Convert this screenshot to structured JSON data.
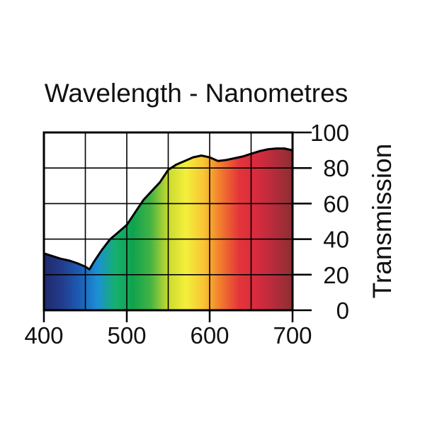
{
  "chart_data": {
    "type": "area",
    "title": "Wavelength - Nanometres",
    "xlabel": "",
    "ylabel": "Transmission",
    "xlim": [
      400,
      700
    ],
    "ylim": [
      0,
      100
    ],
    "x_ticks": [
      "400",
      "500",
      "600",
      "700"
    ],
    "y_ticks": [
      "0",
      "20",
      "40",
      "60",
      "80",
      "100"
    ],
    "grid": true,
    "y_axis_side": "right",
    "fill": "visible spectrum gradient",
    "series": [
      {
        "x": [
          400,
          410,
          420,
          430,
          440,
          450,
          455,
          460,
          470,
          480,
          490,
          500,
          510,
          520,
          530,
          540,
          550,
          560,
          570,
          580,
          590,
          600,
          610,
          620,
          630,
          640,
          650,
          660,
          670,
          680,
          690,
          700
        ],
        "values": [
          32,
          30.5,
          29,
          28,
          26.5,
          24.5,
          23,
          27,
          34,
          40,
          44,
          48,
          55,
          62,
          67,
          72,
          79,
          82,
          84,
          86,
          87,
          86,
          84,
          84.5,
          85.5,
          86.5,
          88,
          89.5,
          90.5,
          91,
          91,
          90
        ]
      }
    ],
    "spectrum_colors": [
      "#1f2a6b",
      "#233b8c",
      "#1b5cb5",
      "#1c8fd6",
      "#15b070",
      "#10a24f",
      "#43b344",
      "#c9da2e",
      "#f4ef3c",
      "#f8c533",
      "#f1772f",
      "#e3353a",
      "#d72b3e",
      "#b32c3c",
      "#8c2f31"
    ]
  }
}
